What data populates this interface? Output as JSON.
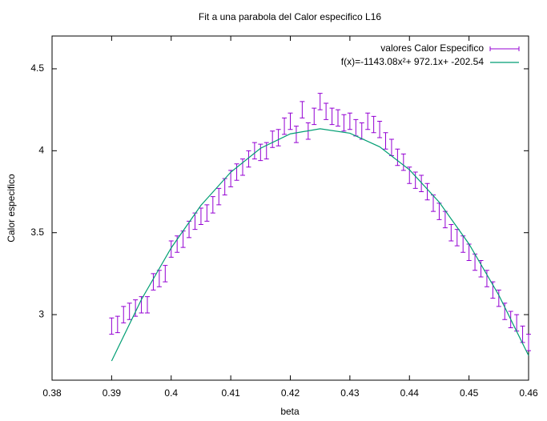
{
  "chart_data": {
    "type": "errorbar",
    "title": "Fit a una parabola del Calor especifico L16",
    "x_label": "beta",
    "y_label": "Calor especifico",
    "xlim": [
      0.38,
      0.46
    ],
    "ylim": [
      2.6,
      4.7
    ],
    "xticks": [
      0.38,
      0.39,
      0.4,
      0.41,
      0.42,
      0.43,
      0.44,
      0.45,
      0.46
    ],
    "yticks": [
      3,
      3.5,
      4,
      4.5
    ],
    "legend": "top-right",
    "series": [
      {
        "name": "valores Calor Especifico",
        "color": "#9400d3",
        "x": [
          0.39,
          0.391,
          0.392,
          0.393,
          0.394,
          0.395,
          0.396,
          0.397,
          0.398,
          0.399,
          0.4,
          0.401,
          0.402,
          0.403,
          0.404,
          0.405,
          0.406,
          0.407,
          0.408,
          0.409,
          0.41,
          0.411,
          0.412,
          0.413,
          0.414,
          0.415,
          0.416,
          0.417,
          0.418,
          0.419,
          0.42,
          0.421,
          0.422,
          0.423,
          0.424,
          0.425,
          0.426,
          0.427,
          0.428,
          0.429,
          0.43,
          0.431,
          0.432,
          0.433,
          0.434,
          0.435,
          0.436,
          0.437,
          0.438,
          0.439,
          0.44,
          0.441,
          0.442,
          0.443,
          0.444,
          0.445,
          0.446,
          0.447,
          0.448,
          0.449,
          0.45,
          0.451,
          0.452,
          0.453,
          0.454,
          0.455,
          0.456,
          0.457,
          0.458,
          0.459,
          0.46
        ],
        "values": [
          2.93,
          2.94,
          3.0,
          3.02,
          3.04,
          3.06,
          3.06,
          3.2,
          3.22,
          3.25,
          3.4,
          3.43,
          3.46,
          3.52,
          3.57,
          3.6,
          3.62,
          3.67,
          3.72,
          3.78,
          3.83,
          3.87,
          3.9,
          3.95,
          4.0,
          3.99,
          4.0,
          4.07,
          4.08,
          4.15,
          4.18,
          4.1,
          4.25,
          4.12,
          4.21,
          4.3,
          4.24,
          4.21,
          4.2,
          4.17,
          4.18,
          4.14,
          4.12,
          4.18,
          4.16,
          4.13,
          4.06,
          4.02,
          3.96,
          3.93,
          3.85,
          3.82,
          3.8,
          3.75,
          3.68,
          3.63,
          3.58,
          3.5,
          3.47,
          3.43,
          3.38,
          3.32,
          3.28,
          3.22,
          3.15,
          3.1,
          3.02,
          2.97,
          2.95,
          2.88,
          2.83
        ],
        "errors": [
          0.05,
          0.05,
          0.05,
          0.05,
          0.05,
          0.05,
          0.05,
          0.05,
          0.05,
          0.05,
          0.05,
          0.05,
          0.05,
          0.05,
          0.05,
          0.05,
          0.05,
          0.05,
          0.05,
          0.05,
          0.05,
          0.05,
          0.05,
          0.05,
          0.05,
          0.05,
          0.05,
          0.05,
          0.05,
          0.05,
          0.05,
          0.05,
          0.05,
          0.05,
          0.05,
          0.05,
          0.05,
          0.05,
          0.05,
          0.05,
          0.05,
          0.05,
          0.05,
          0.05,
          0.05,
          0.05,
          0.05,
          0.05,
          0.05,
          0.05,
          0.05,
          0.05,
          0.05,
          0.05,
          0.05,
          0.05,
          0.05,
          0.05,
          0.05,
          0.05,
          0.05,
          0.05,
          0.05,
          0.05,
          0.05,
          0.05,
          0.05,
          0.05,
          0.05,
          0.05,
          0.05
        ]
      },
      {
        "name": "f(x)=-1143.08x²+ 972.1x+ -202.54",
        "color": "#009e73",
        "x": [
          0.39,
          0.395,
          0.4,
          0.405,
          0.41,
          0.415,
          0.42,
          0.425,
          0.43,
          0.435,
          0.44,
          0.445,
          0.45,
          0.455,
          0.46
        ],
        "values": [
          2.717,
          3.092,
          3.407,
          3.667,
          3.869,
          4.015,
          4.103,
          4.134,
          4.107,
          4.024,
          3.884,
          3.686,
          3.431,
          3.119,
          2.75
        ]
      }
    ]
  }
}
